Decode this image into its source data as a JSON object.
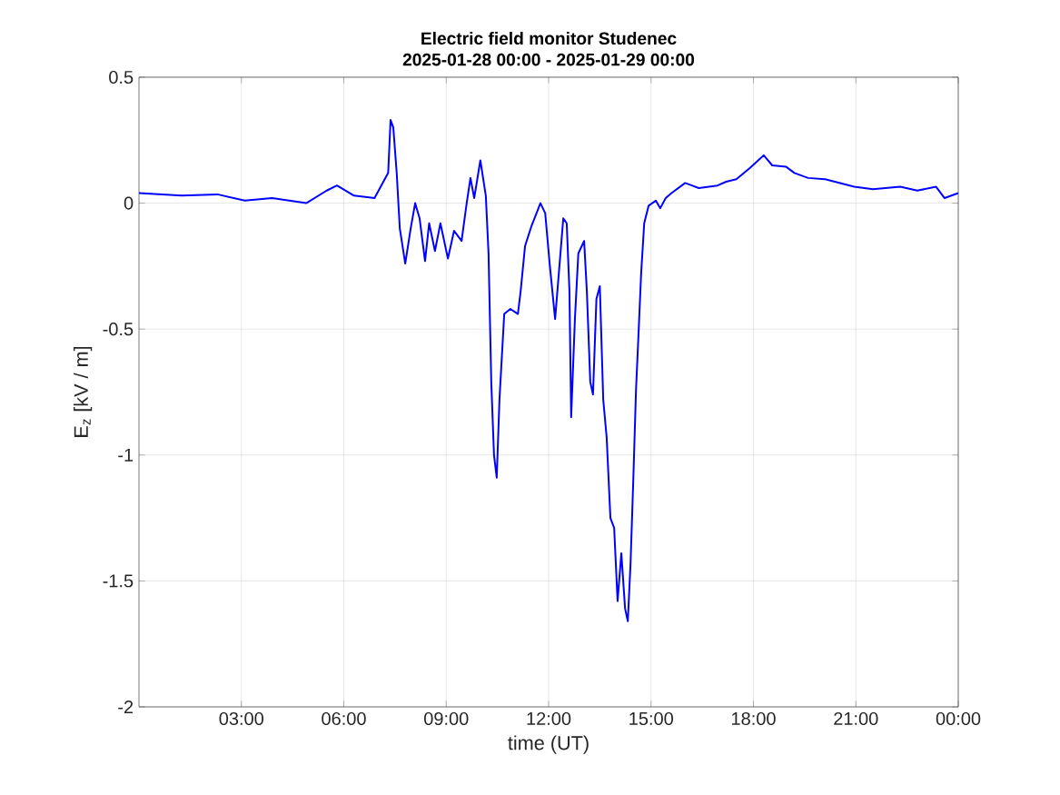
{
  "chart_data": {
    "type": "line",
    "title": "Electric field monitor Studenec",
    "subtitle": "2025-01-28 00:00 - 2025-01-29 00:00",
    "xlabel": "time (UT)",
    "ylabel": "E$_{z}$ [kV / m]",
    "xlim": [
      0,
      24
    ],
    "xticks": [
      {
        "value": 3,
        "label": "03:00"
      },
      {
        "value": 6,
        "label": "06:00"
      },
      {
        "value": 9,
        "label": "09:00"
      },
      {
        "value": 12,
        "label": "12:00"
      },
      {
        "value": 15,
        "label": "15:00"
      },
      {
        "value": 18,
        "label": "18:00"
      },
      {
        "value": 21,
        "label": "21:00"
      },
      {
        "value": 24,
        "label": "00:00"
      }
    ],
    "ylim": [
      -2,
      0.5
    ],
    "yticks": [
      -2,
      -1.5,
      -1,
      -0.5,
      0,
      0.5
    ],
    "grid": true,
    "marker": "none",
    "line_style": "solid",
    "x": [
      0,
      1.25,
      2.3,
      3.1,
      3.9,
      4.9,
      5.5,
      5.8,
      6.3,
      6.9,
      7.1,
      7.3,
      7.37,
      7.45,
      7.55,
      7.64,
      7.8,
      7.96,
      8.09,
      8.22,
      8.38,
      8.5,
      8.67,
      8.83,
      9.05,
      9.23,
      9.45,
      9.6,
      9.71,
      9.82,
      10.0,
      10.16,
      10.24,
      10.32,
      10.4,
      10.48,
      10.56,
      10.7,
      10.88,
      11.1,
      11.18,
      11.31,
      11.5,
      11.76,
      11.9,
      12.03,
      12.19,
      12.43,
      12.53,
      12.61,
      12.66,
      12.77,
      12.87,
      13.04,
      13.12,
      13.22,
      13.3,
      13.4,
      13.5,
      13.6,
      13.7,
      13.81,
      13.92,
      14.02,
      14.13,
      14.24,
      14.32,
      14.4,
      14.48,
      14.56,
      14.63,
      14.71,
      14.8,
      14.93,
      15.14,
      15.27,
      15.43,
      15.6,
      16.0,
      16.4,
      16.95,
      17.2,
      17.5,
      17.9,
      18.3,
      18.55,
      18.95,
      19.2,
      19.6,
      20.1,
      20.95,
      21.5,
      22.3,
      22.8,
      23.35,
      23.6,
      24
    ],
    "series": [
      {
        "color": "#0000ff",
        "values": [
          0.04,
          0.03,
          0.035,
          0.01,
          0.02,
          0.0,
          0.05,
          0.07,
          0.03,
          0.02,
          0.07,
          0.12,
          0.33,
          0.3,
          0.12,
          -0.1,
          -0.24,
          -0.1,
          0.0,
          -0.06,
          -0.23,
          -0.08,
          -0.19,
          -0.08,
          -0.22,
          -0.11,
          -0.15,
          0.0,
          0.1,
          0.02,
          0.17,
          0.03,
          -0.2,
          -0.71,
          -1.0,
          -1.09,
          -0.78,
          -0.44,
          -0.42,
          -0.44,
          -0.35,
          -0.17,
          -0.09,
          0.0,
          -0.04,
          -0.24,
          -0.46,
          -0.06,
          -0.08,
          -0.35,
          -0.85,
          -0.46,
          -0.2,
          -0.15,
          -0.35,
          -0.71,
          -0.76,
          -0.38,
          -0.33,
          -0.78,
          -0.93,
          -1.25,
          -1.29,
          -1.58,
          -1.39,
          -1.61,
          -1.66,
          -1.43,
          -1.1,
          -0.74,
          -0.53,
          -0.28,
          -0.08,
          -0.01,
          0.01,
          -0.02,
          0.02,
          0.04,
          0.08,
          0.06,
          0.07,
          0.085,
          0.095,
          0.14,
          0.19,
          0.15,
          0.145,
          0.12,
          0.1,
          0.095,
          0.065,
          0.055,
          0.065,
          0.05,
          0.065,
          0.02,
          0.04
        ]
      }
    ]
  }
}
